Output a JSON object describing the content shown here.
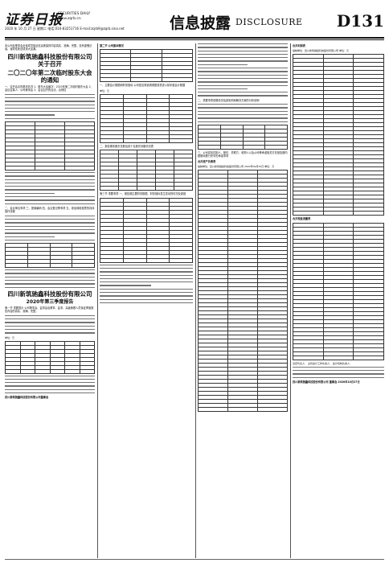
{
  "masthead": {
    "logo": "证券日报",
    "logo_sub_1": "SECURITIES DAILY",
    "logo_sub_2": "www.zqrb.cn",
    "dateline": "2020 年 10 月 27 日 星期二 电话:010-83251716 E-mail:zqrb9@zqrb.sina.net",
    "section_title": "信息披露",
    "section_en": "DISCLOSURE",
    "page_no": "D131"
  },
  "col1": {
    "heading_1": "四川新筑驰鑫科技股份有限公司关于召开",
    "heading_2": "二〇二〇年第二次临时股东大会的通知",
    "intro": "本公司及董事会全体成员保证信息披露的内容真实、准确、完整，没有虚假记载、误导性陈述或重大遗漏。",
    "body_1": "一、召开会议的基本情况 1、股东大会届次：2020年第二次临时股东大会 2、会议召集人：公司董事会 3、会议召开的合法、合规性",
    "body_2": "二、会议审议事项 三、提案编码 四、会议登记等事项 五、参加网络投票的具体操作流程",
    "heading_3": "四川新筑驰鑫科技股份有限公司",
    "heading_4": "2020年第三季度报告",
    "body_3": "第一节 重要提示 公司董事会、监事会及董事、监事、高级管理人员保证季度报告内容的真实、准确、完整。",
    "table_label": "单位：元",
    "footer_sign": "四川新筑驰鑫科技股份有限公司董事会"
  },
  "col2": {
    "top_label": "第二节 公司基本情况",
    "body_1": "一、主要会计数据和财务指标 公司是否需追溯调整或重述以前年度会计数据",
    "body_2": "二、报告期末股东总数及前十名股东持股情况表",
    "body_3": "第三节 重要事项 一、报告期主要财务数据、财务指标发生变动的情况及原因",
    "note": "单位：元"
  },
  "col3": {
    "body_1": "二、重要事项进展情况及其影响和解决方案的分析说明",
    "body_2": "三、公司实际控制人、股东、关联方、收购人以及公司等承诺相关方在报告期内超期未履行完毕的承诺事项",
    "table_head": "合并资产负债表",
    "body_3": "编制单位：四川新筑驰鑫科技股份有限公司 2020年09月30日 单位：元"
  },
  "col4": {
    "top_label": "合并利润表",
    "body_1": "编制单位：四川新筑驰鑫科技股份有限公司 单位：元",
    "table_head": "合并现金流量表",
    "body_2": "法定代表人：  主管会计工作负责人：  会计机构负责人：",
    "footer_sign": "四川新筑驰鑫科技股份有限公司 董事会 2020年10月27日"
  }
}
